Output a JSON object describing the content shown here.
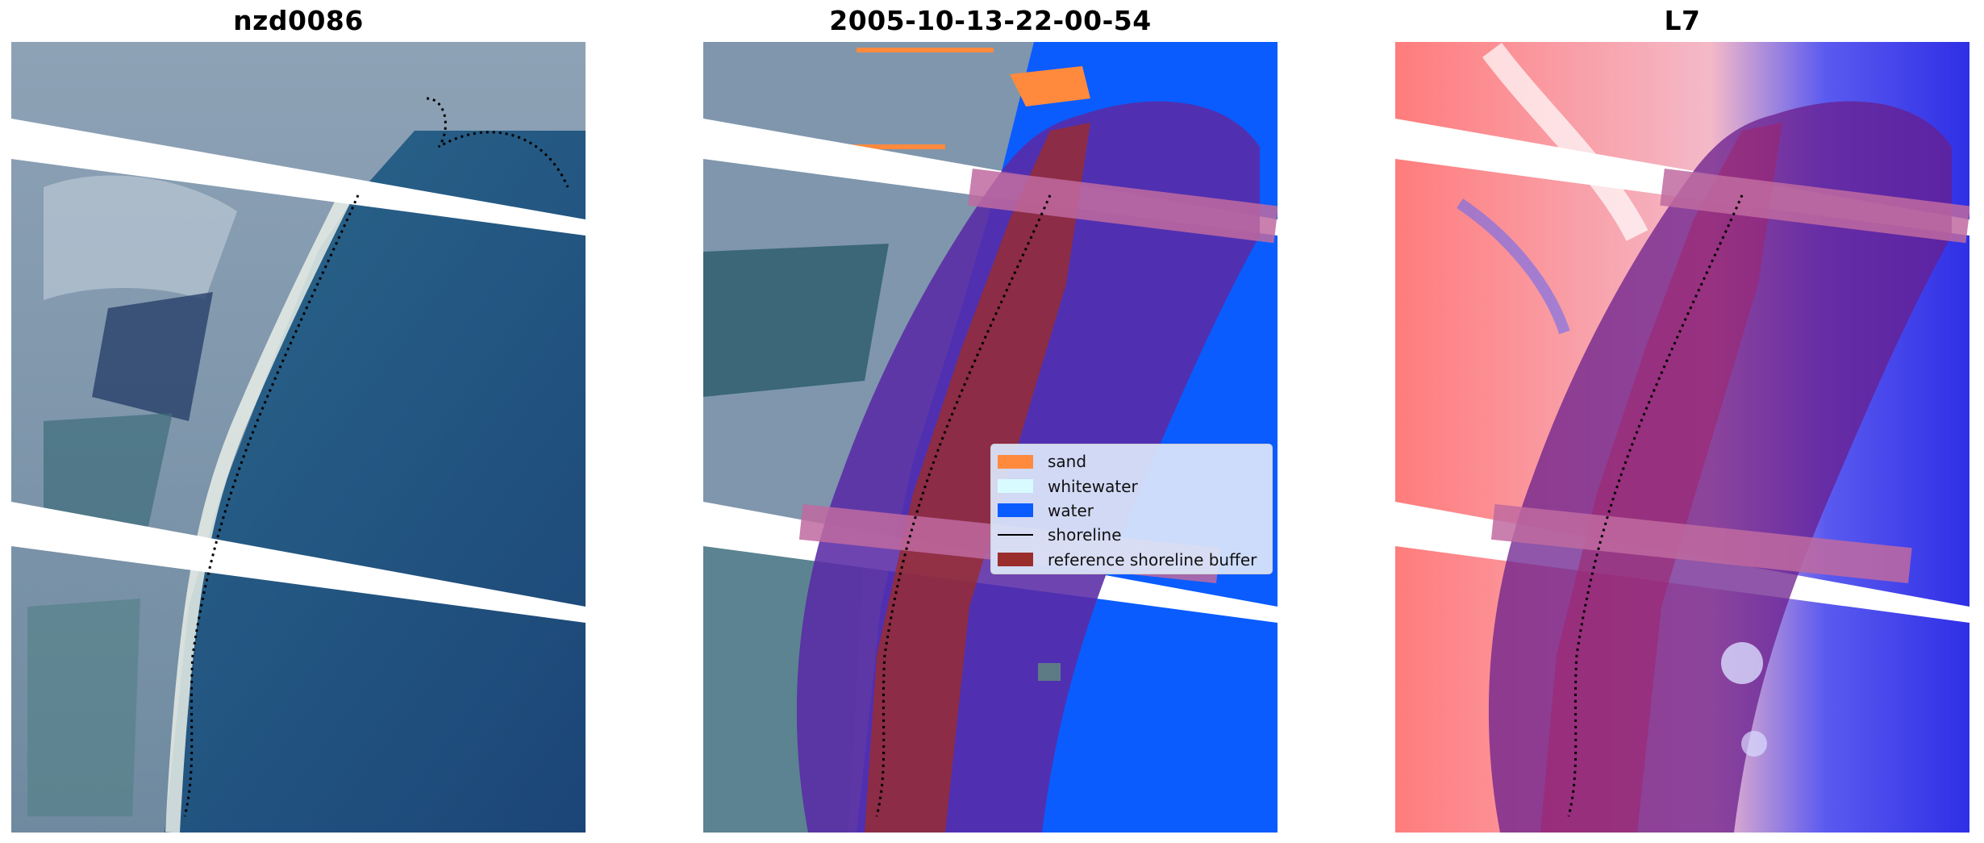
{
  "panels": [
    {
      "title": "nzd0086"
    },
    {
      "title": "2005-10-13-22-00-54"
    },
    {
      "title": "L7"
    }
  ],
  "legend": {
    "items": [
      {
        "label": "sand",
        "color": "#ff8a3d",
        "kind": "patch"
      },
      {
        "label": "whitewater",
        "color": "#d8fbff",
        "kind": "patch"
      },
      {
        "label": "water",
        "color": "#0a5cff",
        "kind": "patch"
      },
      {
        "label": "shoreline",
        "color": "#000000",
        "kind": "line"
      },
      {
        "label": "reference shoreline buffer",
        "color": "#9b2c2c",
        "kind": "patch"
      }
    ]
  },
  "colors": {
    "satellite_water": "#1f4f7a",
    "water_class": "#0a5cff",
    "sand_class": "#ff8a3d",
    "buffer": "#9b2c2c",
    "index_positive": "#e8303a",
    "index_negative": "#2626e0"
  }
}
